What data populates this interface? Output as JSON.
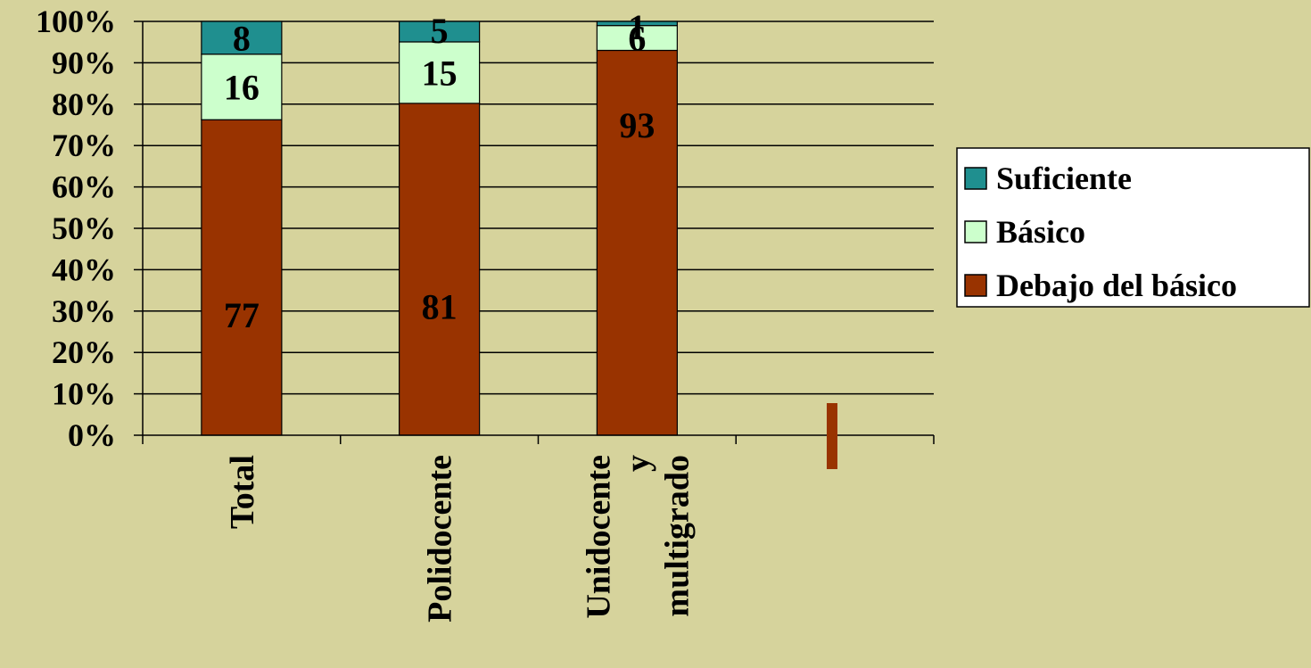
{
  "chart_data": {
    "type": "bar",
    "stacked": true,
    "percent": true,
    "categories": [
      "Total",
      "Polidocente",
      "Unidocente y multigrado"
    ],
    "category_lines": [
      [
        "Total"
      ],
      [
        "Polidocente"
      ],
      [
        "Unidocente",
        "y",
        "multigrado"
      ]
    ],
    "series": [
      {
        "name": "Debajo del básico",
        "values": [
          77,
          81,
          93
        ],
        "color": "#993300"
      },
      {
        "name": "Básico",
        "values": [
          16,
          15,
          6
        ],
        "color": "#ccffcc"
      },
      {
        "name": "Suficiente",
        "values": [
          8,
          5,
          1
        ],
        "color": "#1f8f8f"
      }
    ],
    "yticks": [
      "0%",
      "10%",
      "20%",
      "30%",
      "40%",
      "50%",
      "60%",
      "70%",
      "80%",
      "90%",
      "100%"
    ],
    "ylim": [
      0,
      100
    ],
    "legend_order": [
      "Suficiente",
      "Básico",
      "Debajo del básico"
    ],
    "legend_position": "right",
    "grid": true
  }
}
